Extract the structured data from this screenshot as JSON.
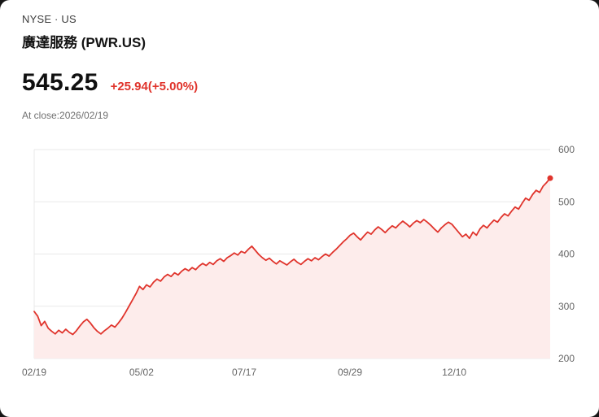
{
  "header": {
    "exchange": "NYSE · US",
    "title": "廣達服務 (PWR.US)"
  },
  "quote": {
    "price": "545.25",
    "change": "+25.94(+5.00%)",
    "as_of": "At close:2026/02/19"
  },
  "colors": {
    "line": "#e0342c",
    "fill": "#fdeceb",
    "change_text": "#e0342c",
    "grid": "#e9e9e9",
    "axis_text": "#666666"
  },
  "chart_data": {
    "type": "line",
    "title": "廣達服務 (PWR.US) 1-year price",
    "xlabel": "",
    "ylabel": "",
    "ylim": [
      200,
      600
    ],
    "y_ticks": [
      200,
      300,
      400,
      500,
      600
    ],
    "x_tick_labels": [
      "02/19",
      "05/02",
      "07/17",
      "09/29",
      "12/10"
    ],
    "x_tick_positions": [
      0,
      0.208,
      0.407,
      0.612,
      0.814
    ],
    "grid": "horizontal",
    "legend": "none",
    "series": [
      {
        "name": "PWR.US",
        "values": [
          290,
          281,
          263,
          271,
          258,
          252,
          247,
          254,
          249,
          256,
          250,
          246,
          253,
          262,
          270,
          275,
          268,
          259,
          252,
          247,
          253,
          258,
          264,
          260,
          268,
          277,
          288,
          300,
          312,
          324,
          338,
          332,
          341,
          337,
          346,
          352,
          348,
          356,
          361,
          357,
          364,
          360,
          367,
          372,
          368,
          374,
          370,
          377,
          382,
          378,
          384,
          380,
          387,
          391,
          386,
          393,
          397,
          402,
          398,
          405,
          402,
          409,
          415,
          407,
          399,
          393,
          388,
          392,
          386,
          381,
          387,
          383,
          379,
          385,
          390,
          384,
          380,
          386,
          391,
          387,
          393,
          389,
          395,
          400,
          396,
          403,
          409,
          416,
          423,
          429,
          436,
          440,
          433,
          427,
          435,
          442,
          438,
          446,
          452,
          447,
          441,
          448,
          454,
          450,
          457,
          463,
          458,
          452,
          459,
          464,
          460,
          466,
          461,
          455,
          448,
          442,
          450,
          456,
          461,
          457,
          449,
          441,
          433,
          438,
          430,
          442,
          436,
          448,
          455,
          450,
          458,
          465,
          461,
          470,
          477,
          473,
          482,
          490,
          486,
          497,
          507,
          503,
          514,
          522,
          518,
          530,
          537,
          545.25
        ]
      }
    ]
  }
}
